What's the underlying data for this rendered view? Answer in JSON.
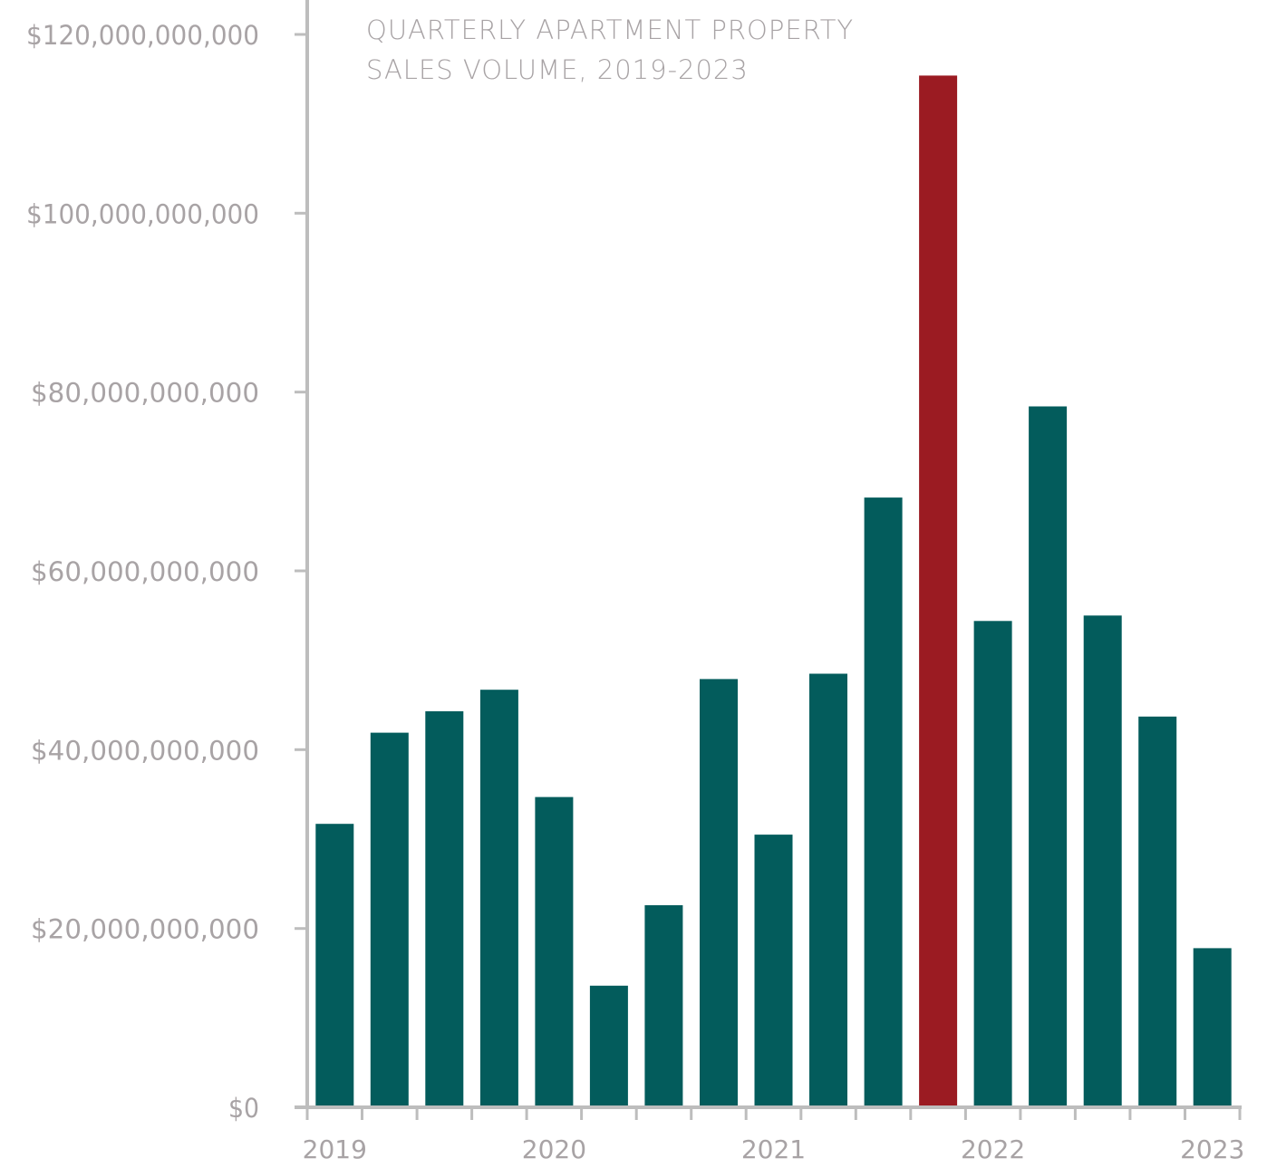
{
  "chart_data": {
    "type": "bar",
    "title_lines": [
      "QUARTERLY APARTMENT PROPERTY",
      "SALES VOLUME, 2019-2023"
    ],
    "categories": [
      "2019 Q1",
      "2019 Q2",
      "2019 Q3",
      "2019 Q4",
      "2020 Q1",
      "2020 Q2",
      "2020 Q3",
      "2020 Q4",
      "2021 Q1",
      "2021 Q2",
      "2021 Q3",
      "2021 Q4",
      "2022 Q1",
      "2022 Q2",
      "2022 Q3",
      "2022 Q4",
      "2023 Q1"
    ],
    "values": [
      31700000000,
      41900000000,
      44300000000,
      46700000000,
      34700000000,
      13600000000,
      22600000000,
      47900000000,
      30500000000,
      48500000000,
      68200000000,
      115400000000,
      54400000000,
      78400000000,
      55000000000,
      43700000000,
      17800000000
    ],
    "highlight_index": 11,
    "xtick_labels": [
      {
        "label": "2019",
        "index": 0
      },
      {
        "label": "2020",
        "index": 4
      },
      {
        "label": "2021",
        "index": 8
      },
      {
        "label": "2022",
        "index": 12
      },
      {
        "label": "2023",
        "index": 16
      }
    ],
    "ytick_values": [
      0,
      20000000000,
      40000000000,
      60000000000,
      80000000000,
      100000000000,
      120000000000
    ],
    "ytick_labels": [
      "$0",
      "$20,000,000,000",
      "$40,000,000,000",
      "$60,000,000,000",
      "$80,000,000,000",
      "$100,000,000,000",
      "$120,000,000,000"
    ],
    "ylim": [
      0,
      120000000000
    ],
    "xlabel": "",
    "ylabel": "",
    "grid": false,
    "colors": {
      "bar": "#035c5c",
      "highlight": "#9b1b22",
      "axis": "#bdbdbd",
      "text": "#a8a3a5"
    }
  }
}
